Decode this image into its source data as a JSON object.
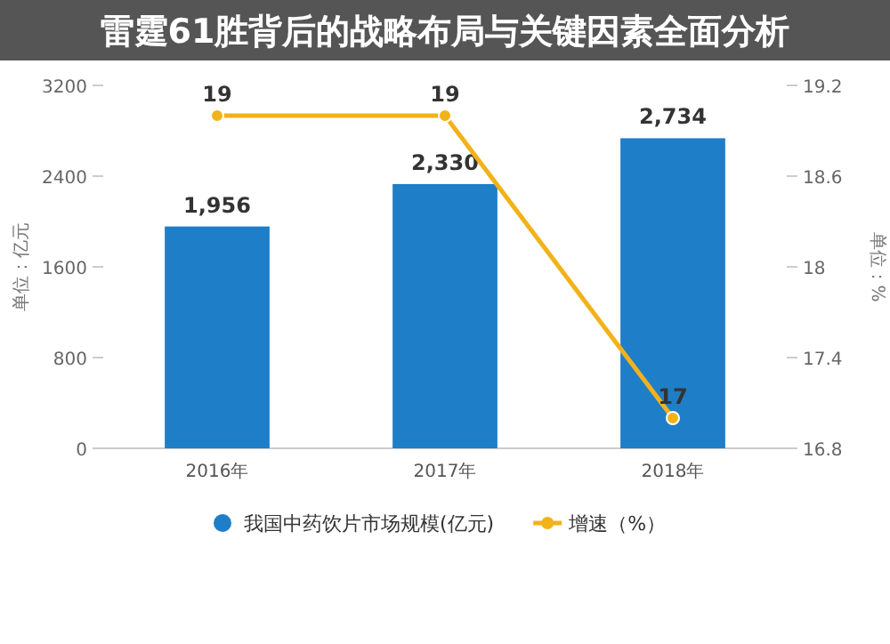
{
  "chart_data": {
    "type": "bar",
    "title": "雷霆61胜背后的战略布局与关键因素全面分析",
    "categories": [
      "2016年",
      "2017年",
      "2018年"
    ],
    "ylabel": "单位：亿元",
    "y2label": "单位：%",
    "ylim": [
      0,
      3200
    ],
    "yticks": [
      0,
      800,
      1600,
      2400,
      3200
    ],
    "y2lim": [
      16.8,
      19.2
    ],
    "y2ticks": [
      16.8,
      17.4,
      18,
      18.6,
      19.2
    ],
    "grid": false,
    "legend": "bottom",
    "marker": "circle",
    "line_style": "solid",
    "series": [
      {
        "name": "我国中药饮片市场规模(亿元)",
        "color": "#1f7ec8",
        "values": [
          1956,
          2330,
          2734
        ],
        "value_labels": [
          "1,956",
          "2,330",
          "2,734"
        ]
      },
      {
        "name": "增速（%）",
        "type": "line",
        "axis": "y2",
        "color": "#f2b21a",
        "values": [
          19,
          19,
          17
        ],
        "value_labels": [
          "19",
          "19",
          "17"
        ]
      }
    ]
  }
}
